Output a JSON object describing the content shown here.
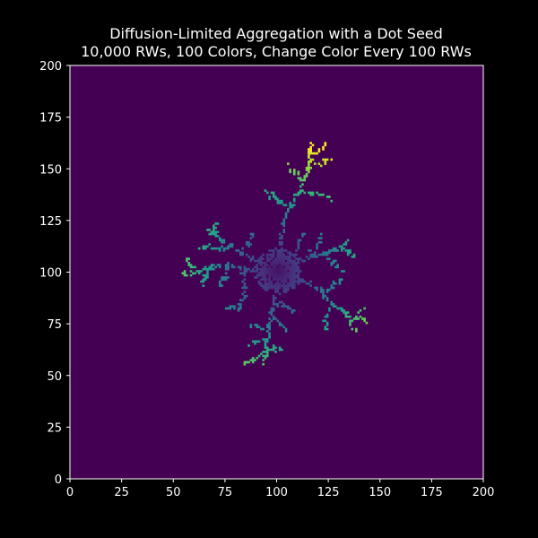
{
  "chart_data": {
    "type": "heatmap",
    "title_lines": [
      "Diffusion-Limited Aggregation with a Dot Seed",
      "10,000 RWs, 100 Colors, Change Color Every 100 RWs"
    ],
    "xlabel": "",
    "ylabel": "",
    "xlim": [
      0,
      200
    ],
    "ylim": [
      0,
      200
    ],
    "x_ticks": [
      0,
      25,
      50,
      75,
      100,
      125,
      150,
      175,
      200
    ],
    "y_ticks": [
      0,
      25,
      50,
      75,
      100,
      125,
      150,
      175,
      200
    ],
    "colormap": "viridis",
    "background_color": "#440154",
    "figure_background": "#000000",
    "seed": [
      100,
      100
    ],
    "branches": [
      {
        "name": "north",
        "path": [
          [
            100,
            100
          ],
          [
            101,
            108
          ],
          [
            102,
            116
          ],
          [
            103,
            124
          ],
          [
            106,
            131
          ],
          [
            110,
            138
          ],
          [
            113,
            144
          ],
          [
            115,
            150
          ],
          [
            116,
            157
          ],
          [
            116,
            162
          ]
        ],
        "sub": [
          [
            [
              113,
              144
            ],
            [
              109,
              147
            ],
            [
              105,
              151
            ]
          ],
          [
            [
              106,
              131
            ],
            [
              101,
              134
            ],
            [
              97,
              137
            ],
            [
              94,
              139
            ]
          ],
          [
            [
              110,
              138
            ],
            [
              116,
              138
            ],
            [
              121,
              137
            ],
            [
              126,
              135
            ]
          ],
          [
            [
              115,
              150
            ],
            [
              121,
              152
            ],
            [
              126,
              154
            ]
          ],
          [
            [
              116,
              157
            ],
            [
              120,
              159
            ],
            [
              122,
              161
            ]
          ]
        ]
      },
      {
        "name": "northwest",
        "path": [
          [
            100,
            100
          ],
          [
            94,
            103
          ],
          [
            88,
            106
          ],
          [
            82,
            109
          ],
          [
            77,
            112
          ],
          [
            73,
            115
          ],
          [
            70,
            119
          ],
          [
            69,
            124
          ]
        ],
        "sub": [
          [
            [
              77,
              112
            ],
            [
              72,
              111
            ],
            [
              67,
              112
            ],
            [
              62,
              112
            ]
          ],
          [
            [
              73,
              115
            ],
            [
              69,
              118
            ],
            [
              66,
              121
            ]
          ],
          [
            [
              82,
              109
            ],
            [
              86,
              114
            ],
            [
              88,
              118
            ]
          ]
        ]
      },
      {
        "name": "west",
        "path": [
          [
            100,
            100
          ],
          [
            92,
            100
          ],
          [
            84,
            101
          ],
          [
            76,
            103
          ],
          [
            68,
            102
          ],
          [
            62,
            100
          ],
          [
            58,
            99
          ],
          [
            54,
            99
          ]
        ],
        "sub": [
          [
            [
              68,
              102
            ],
            [
              65,
              97
            ],
            [
              63,
              94
            ]
          ],
          [
            [
              76,
              103
            ],
            [
              74,
              97
            ],
            [
              72,
              93
            ]
          ],
          [
            [
              84,
              101
            ],
            [
              84,
              94
            ],
            [
              84,
              88
            ],
            [
              82,
              83
            ],
            [
              78,
              82
            ],
            [
              74,
              82
            ]
          ],
          [
            [
              62,
              100
            ],
            [
              58,
              103
            ],
            [
              56,
              106
            ]
          ]
        ]
      },
      {
        "name": "northeast",
        "path": [
          [
            100,
            100
          ],
          [
            108,
            104
          ],
          [
            116,
            107
          ],
          [
            124,
            109
          ],
          [
            130,
            112
          ],
          [
            134,
            115
          ]
        ],
        "sub": [
          [
            [
              124,
              109
            ],
            [
              127,
              104
            ],
            [
              130,
              100
            ]
          ],
          [
            [
              116,
              107
            ],
            [
              119,
              112
            ],
            [
              121,
              117
            ]
          ],
          [
            [
              130,
              112
            ],
            [
              134,
              109
            ],
            [
              138,
              107
            ]
          ],
          [
            [
              108,
              104
            ],
            [
              110,
              112
            ],
            [
              112,
              119
            ]
          ]
        ]
      },
      {
        "name": "east",
        "path": [
          [
            100,
            100
          ],
          [
            108,
            96
          ],
          [
            116,
            94
          ],
          [
            122,
            89
          ],
          [
            126,
            84
          ],
          [
            132,
            81
          ],
          [
            138,
            78
          ],
          [
            143,
            76
          ]
        ],
        "sub": [
          [
            [
              122,
              89
            ],
            [
              127,
              93
            ],
            [
              131,
              96
            ]
          ],
          [
            [
              132,
              81
            ],
            [
              135,
              75
            ],
            [
              137,
              72
            ]
          ],
          [
            [
              126,
              84
            ],
            [
              124,
              78
            ],
            [
              123,
              73
            ]
          ],
          [
            [
              138,
              78
            ],
            [
              141,
              82
            ]
          ]
        ]
      },
      {
        "name": "south",
        "path": [
          [
            100,
            100
          ],
          [
            99,
            92
          ],
          [
            98,
            85
          ],
          [
            97,
            79
          ],
          [
            96,
            73
          ],
          [
            95,
            67
          ],
          [
            94,
            61
          ],
          [
            93,
            55
          ]
        ],
        "sub": [
          [
            [
              96,
              73
            ],
            [
              91,
              73
            ],
            [
              87,
              74
            ]
          ],
          [
            [
              95,
              67
            ],
            [
              90,
              66
            ],
            [
              86,
              65
            ]
          ],
          [
            [
              94,
              61
            ],
            [
              88,
              57
            ],
            [
              84,
              55
            ]
          ],
          [
            [
              97,
              79
            ],
            [
              101,
              75
            ],
            [
              104,
              71
            ]
          ],
          [
            [
              98,
              85
            ],
            [
              104,
              83
            ],
            [
              108,
              80
            ]
          ],
          [
            [
              94,
              61
            ],
            [
              99,
              62
            ],
            [
              102,
              62
            ]
          ]
        ]
      }
    ]
  }
}
